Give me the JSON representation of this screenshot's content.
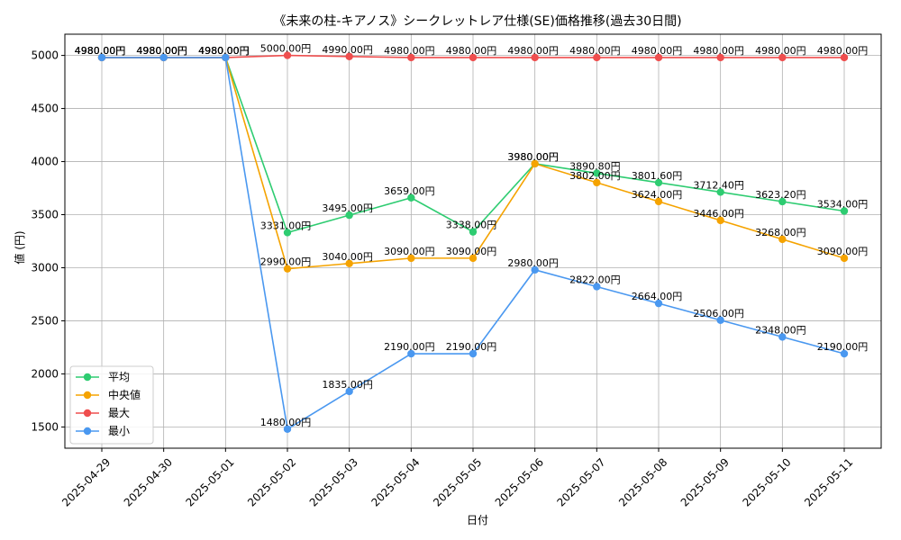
{
  "chart_data": {
    "type": "line",
    "title": "《未来の柱-キアノス》シークレットレア仕様(SE)価格推移(過去30日間)",
    "xlabel": "日付",
    "ylabel": "値 (円)",
    "ylim": [
      1300,
      5200
    ],
    "yticks": [
      1500,
      2000,
      2500,
      3000,
      3500,
      4000,
      4500,
      5000
    ],
    "grid": true,
    "legend_position": "lower-left",
    "x": [
      "2025-04-29",
      "2025-04-30",
      "2025-05-01",
      "2025-05-02",
      "2025-05-03",
      "2025-05-04",
      "2025-05-05",
      "2025-05-06",
      "2025-05-07",
      "2025-05-08",
      "2025-05-09",
      "2025-05-10",
      "2025-05-11"
    ],
    "series": [
      {
        "name": "平均",
        "color": "#2ecc71",
        "values": [
          4980,
          4980,
          4980,
          3331,
          3495,
          3659,
          3338,
          3980,
          3890.8,
          3801.6,
          3712.4,
          3623.2,
          3534
        ],
        "labels": [
          "4980.00円",
          "4980.00円",
          "4980.00円",
          "3331.00円",
          "3495.00円",
          "3659.00円",
          "3338.00円",
          "3980.00円",
          "3890.80円",
          "3801.60円",
          "3712.40円",
          "3623.20円",
          "3534.00円"
        ]
      },
      {
        "name": "中央値",
        "color": "#f5a300",
        "values": [
          4980,
          4980,
          4980,
          2990,
          3040,
          3090,
          3090,
          3980,
          3802,
          3624,
          3446,
          3268,
          3090
        ],
        "labels": [
          "4980.00円",
          "4980.00円",
          "4980.00円",
          "2990.00円",
          "3040.00円",
          "3090.00円",
          "3090.00円",
          "3980.00円",
          "3802.00円",
          "3624.00円",
          "3446.00円",
          "3268.00円",
          "3090.00円"
        ]
      },
      {
        "name": "最大",
        "color": "#ef4e4e",
        "values": [
          4980,
          4980,
          4980,
          5000,
          4990,
          4980,
          4980,
          4980,
          4980,
          4980,
          4980,
          4980,
          4980
        ],
        "labels": [
          "4980.00円",
          "4980.00円",
          "4980.00円",
          "5000.00円",
          "4990.00円",
          "4980.00円",
          "4980.00円",
          "4980.00円",
          "4980.00円",
          "4980.00円",
          "4980.00円",
          "4980.00円",
          "4980.00円"
        ]
      },
      {
        "name": "最小",
        "color": "#4a98f0",
        "values": [
          4980,
          4980,
          4980,
          1480,
          1835,
          2190,
          2190,
          2980,
          2822,
          2664,
          2506,
          2348,
          2190
        ],
        "labels": [
          "4980.00円",
          "4980.00円",
          "4980.00円",
          "1480.00円",
          "1835.00円",
          "2190.00円",
          "2190.00円",
          "2980.00円",
          "2822.00円",
          "2664.00円",
          "2506.00円",
          "2348.00円",
          "2190.00円"
        ]
      }
    ]
  }
}
